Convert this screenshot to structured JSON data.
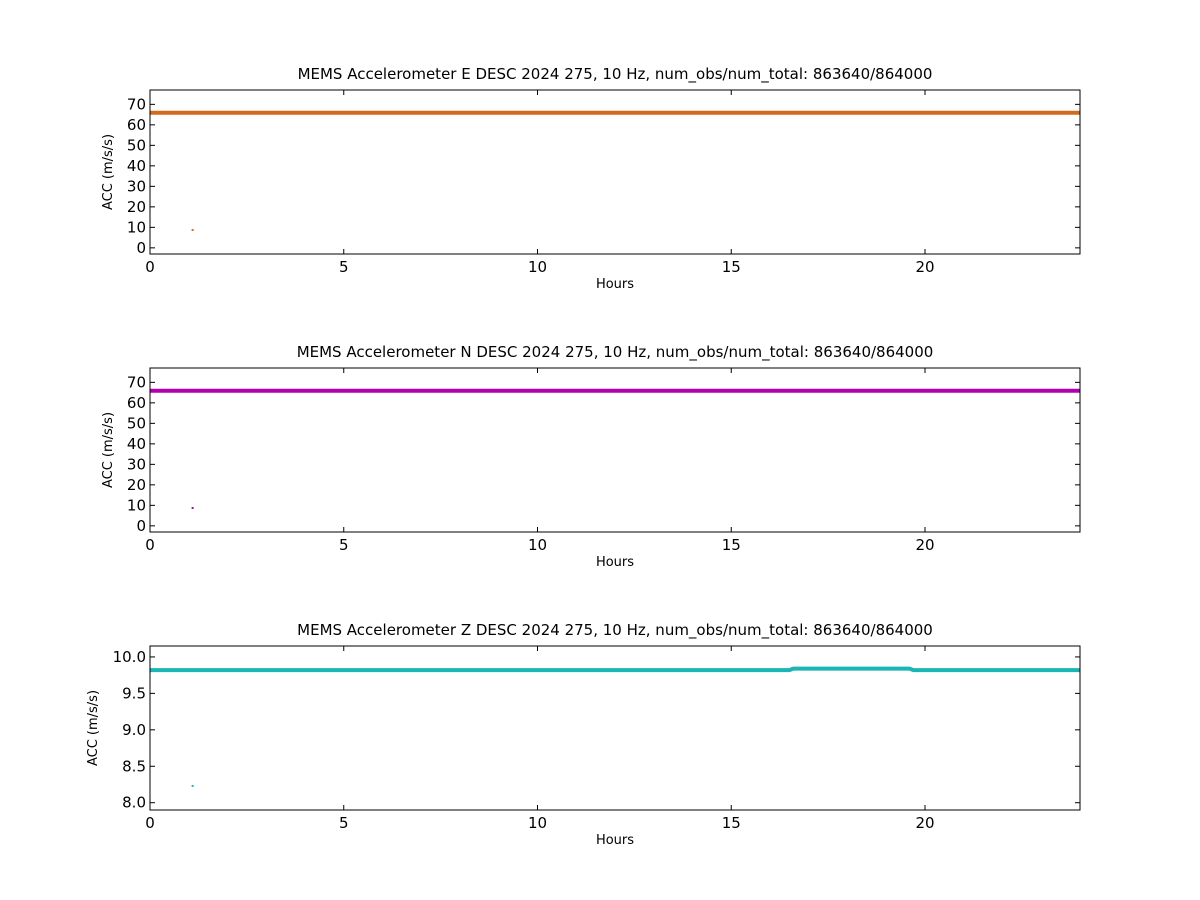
{
  "chart_data": [
    {
      "type": "line",
      "title": "MEMS Accelerometer E DESC 2024 275, 10 Hz, num_obs/num_total: 863640/864000",
      "xlabel": "Hours",
      "ylabel": "ACC (m/s/s)",
      "xlim": [
        0,
        24
      ],
      "ylim": [
        -3,
        77
      ],
      "xticks": [
        0,
        5,
        10,
        15,
        20
      ],
      "yticks": [
        0,
        10,
        20,
        30,
        40,
        50,
        60,
        70
      ],
      "grid": false,
      "color": "#d2691e",
      "series": [
        {
          "x": [
            0,
            24
          ],
          "y": [
            65.9,
            65.9
          ]
        },
        {
          "x": [
            1.1
          ],
          "y": [
            8.7
          ],
          "style": "point"
        }
      ]
    },
    {
      "type": "line",
      "title": "MEMS Accelerometer N DESC 2024 275, 10 Hz, num_obs/num_total: 863640/864000",
      "xlabel": "Hours",
      "ylabel": "ACC (m/s/s)",
      "xlim": [
        0,
        24
      ],
      "ylim": [
        -3,
        77
      ],
      "xticks": [
        0,
        5,
        10,
        15,
        20
      ],
      "yticks": [
        0,
        10,
        20,
        30,
        40,
        50,
        60,
        70
      ],
      "grid": false,
      "color": "#b000b0",
      "series": [
        {
          "x": [
            0,
            24
          ],
          "y": [
            65.9,
            65.9
          ]
        },
        {
          "x": [
            1.1
          ],
          "y": [
            8.7
          ],
          "style": "point"
        }
      ]
    },
    {
      "type": "line",
      "title": "MEMS Accelerometer Z DESC 2024 275, 10 Hz, num_obs/num_total: 863640/864000",
      "xlabel": "Hours",
      "ylabel": "ACC (m/s/s)",
      "xlim": [
        0,
        24
      ],
      "ylim": [
        7.9,
        10.15
      ],
      "xticks": [
        0,
        5,
        10,
        15,
        20
      ],
      "yticks": [
        8.0,
        8.5,
        9.0,
        9.5,
        10.0
      ],
      "ytick_labels": [
        "8.0",
        "8.5",
        "9.0",
        "9.5",
        "10.0"
      ],
      "grid": false,
      "color": "#1ab5b5",
      "series": [
        {
          "x": [
            0,
            16.5,
            16.6,
            18.0,
            19.0,
            19.6,
            19.7,
            24
          ],
          "y": [
            9.82,
            9.82,
            9.84,
            9.84,
            9.84,
            9.84,
            9.82,
            9.82
          ]
        },
        {
          "x": [
            1.1
          ],
          "y": [
            8.23
          ],
          "style": "point"
        }
      ]
    }
  ]
}
